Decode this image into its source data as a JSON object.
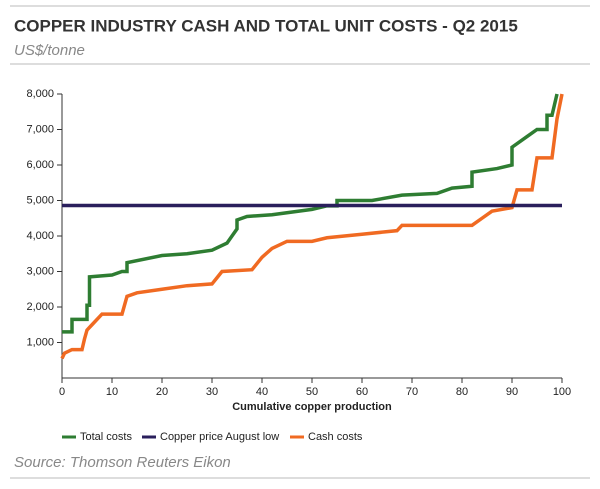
{
  "chart_data": {
    "type": "line",
    "title": "COPPER INDUSTRY CASH AND TOTAL UNIT COSTS - Q2 2015",
    "subtitle": "US$/tonne",
    "xlabel": "Cumulative copper production",
    "source": "Source: Thomson Reuters Eikon",
    "xlim": [
      0,
      100
    ],
    "xticks": [
      0,
      10,
      20,
      30,
      40,
      50,
      60,
      70,
      80,
      90,
      100
    ],
    "ylim": [
      0,
      8000
    ],
    "yticks": [
      {
        "value": 1000,
        "label": "1,000"
      },
      {
        "value": 2000,
        "label": "2,000"
      },
      {
        "value": 3000,
        "label": "3,000"
      },
      {
        "value": 4000,
        "label": "4,000"
      },
      {
        "value": 5000,
        "label": "5,000"
      },
      {
        "value": 6000,
        "label": "6,000"
      },
      {
        "value": 7000,
        "label": "7,000"
      },
      {
        "value": 8000,
        "label": "8,000"
      }
    ],
    "series": [
      {
        "name": "Total costs",
        "color": "#2e7d32",
        "x": [
          0,
          2,
          2,
          5,
          5,
          5.5,
          5.5,
          10,
          12,
          13,
          13,
          20,
          25,
          30,
          33,
          34,
          35,
          35,
          37,
          42,
          50,
          53,
          55,
          55,
          62,
          68,
          75,
          78,
          82,
          82,
          87,
          90,
          90,
          93,
          95,
          97,
          97,
          98,
          99
        ],
        "values": [
          1300,
          1300,
          1650,
          1650,
          2050,
          2050,
          2850,
          2900,
          3000,
          3000,
          3250,
          3450,
          3500,
          3600,
          3800,
          4000,
          4200,
          4450,
          4550,
          4600,
          4750,
          4850,
          4850,
          5000,
          5000,
          5150,
          5200,
          5350,
          5400,
          5800,
          5900,
          6000,
          6500,
          6800,
          7000,
          7000,
          7400,
          7400,
          8000
        ]
      },
      {
        "name": "Copper price August low",
        "color": "#2a1f5c",
        "x": [
          0,
          100
        ],
        "values": [
          4860,
          4860
        ]
      },
      {
        "name": "Cash costs",
        "color": "#f06a22",
        "x": [
          0,
          0.5,
          2,
          4,
          4.5,
          5,
          6,
          8,
          12,
          13,
          15,
          20,
          25,
          30,
          32,
          38,
          40,
          42,
          45,
          50,
          53,
          60,
          67,
          68,
          82,
          84,
          86,
          90,
          91,
          94,
          95,
          98,
          99,
          100
        ],
        "values": [
          550,
          700,
          800,
          800,
          1100,
          1350,
          1500,
          1800,
          1800,
          2300,
          2400,
          2500,
          2600,
          2650,
          3000,
          3050,
          3400,
          3650,
          3850,
          3850,
          3950,
          4050,
          4150,
          4300,
          4300,
          4500,
          4700,
          4800,
          5300,
          5300,
          6200,
          6200,
          7300,
          8000
        ]
      }
    ]
  }
}
